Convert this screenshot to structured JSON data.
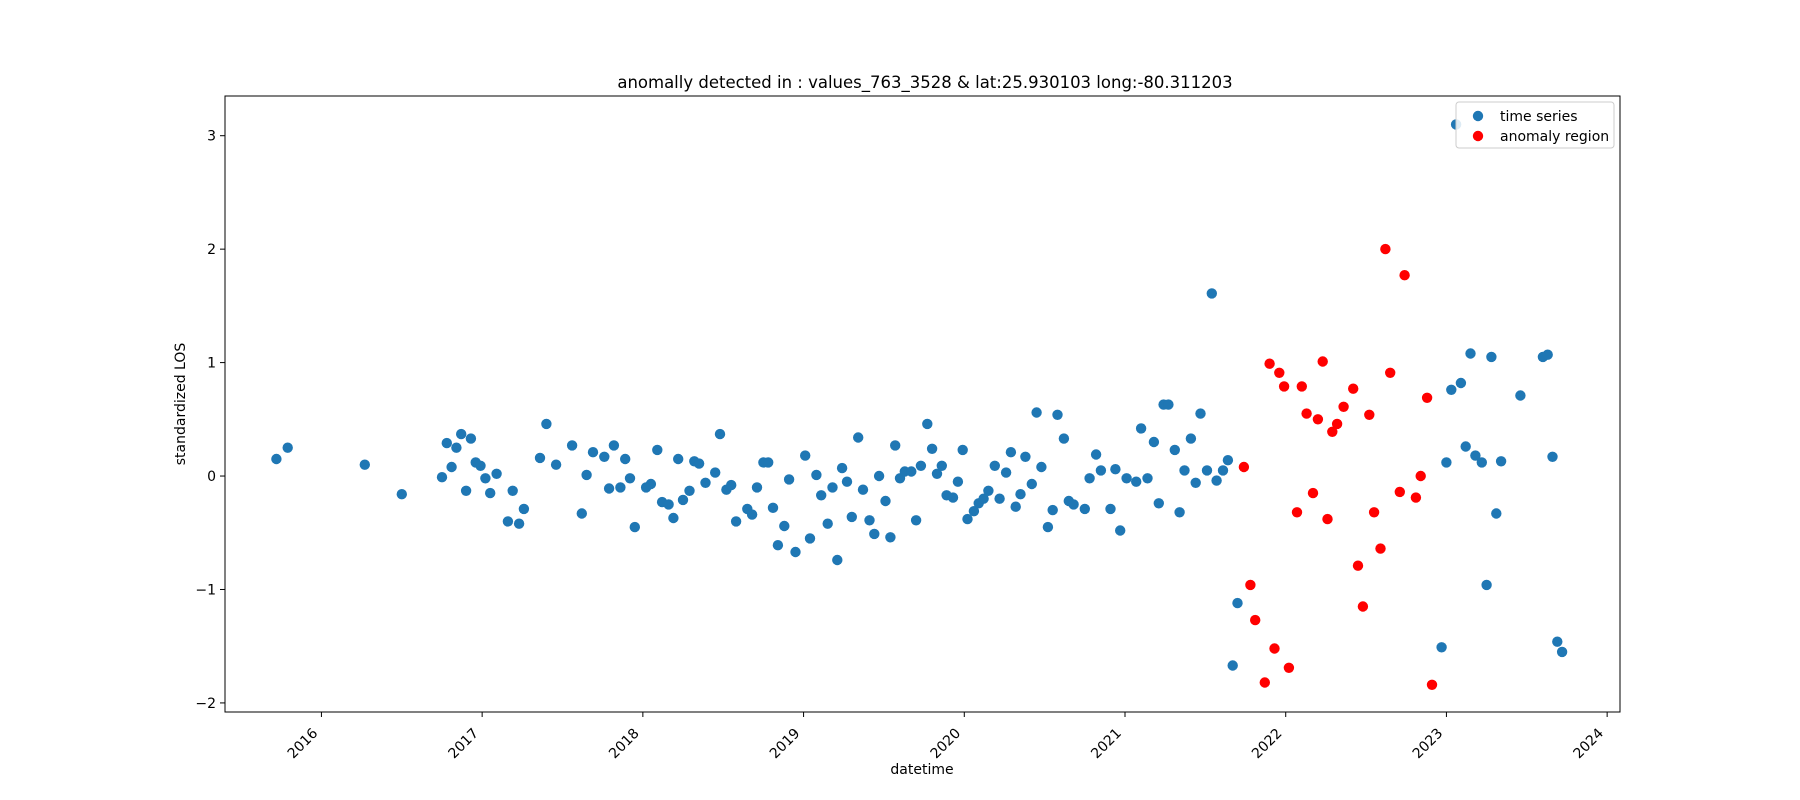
{
  "chart_data": {
    "type": "scatter",
    "title": "anomally detected in : values_763_3528 & lat:25.930103 long:-80.311203",
    "xlabel": "datetime",
    "ylabel": "standardized LOS",
    "xlim": [
      2015.4,
      2024.08
    ],
    "ylim": [
      -2.08,
      3.35
    ],
    "x_ticks": [
      {
        "value": 2016,
        "label": "2016"
      },
      {
        "value": 2017,
        "label": "2017"
      },
      {
        "value": 2018,
        "label": "2018"
      },
      {
        "value": 2019,
        "label": "2019"
      },
      {
        "value": 2020,
        "label": "2020"
      },
      {
        "value": 2021,
        "label": "2021"
      },
      {
        "value": 2022,
        "label": "2022"
      },
      {
        "value": 2023,
        "label": "2023"
      },
      {
        "value": 2024,
        "label": "2024"
      }
    ],
    "y_ticks": [
      {
        "value": -2,
        "label": "−2"
      },
      {
        "value": -1,
        "label": "−1"
      },
      {
        "value": 0,
        "label": "0"
      },
      {
        "value": 1,
        "label": "1"
      },
      {
        "value": 2,
        "label": "2"
      },
      {
        "value": 3,
        "label": "3"
      }
    ],
    "legend_position": "top-right",
    "grid": false,
    "series": [
      {
        "name": "time series",
        "color": "#1f77b4",
        "points": [
          [
            2015.72,
            0.15
          ],
          [
            2015.79,
            0.25
          ],
          [
            2016.27,
            0.1
          ],
          [
            2016.5,
            -0.16
          ],
          [
            2016.75,
            -0.01
          ],
          [
            2016.78,
            0.29
          ],
          [
            2016.81,
            0.08
          ],
          [
            2016.84,
            0.25
          ],
          [
            2016.87,
            0.37
          ],
          [
            2016.9,
            -0.13
          ],
          [
            2016.93,
            0.33
          ],
          [
            2016.96,
            0.12
          ],
          [
            2016.99,
            0.09
          ],
          [
            2017.02,
            -0.02
          ],
          [
            2017.05,
            -0.15
          ],
          [
            2017.09,
            0.02
          ],
          [
            2017.16,
            -0.4
          ],
          [
            2017.19,
            -0.13
          ],
          [
            2017.23,
            -0.42
          ],
          [
            2017.26,
            -0.29
          ],
          [
            2017.36,
            0.16
          ],
          [
            2017.4,
            0.46
          ],
          [
            2017.46,
            0.1
          ],
          [
            2017.56,
            0.27
          ],
          [
            2017.62,
            -0.33
          ],
          [
            2017.65,
            0.01
          ],
          [
            2017.69,
            0.21
          ],
          [
            2017.76,
            0.17
          ],
          [
            2017.79,
            -0.11
          ],
          [
            2017.82,
            0.27
          ],
          [
            2017.86,
            -0.1
          ],
          [
            2017.89,
            0.15
          ],
          [
            2017.92,
            -0.02
          ],
          [
            2017.95,
            -0.45
          ],
          [
            2018.02,
            -0.1
          ],
          [
            2018.05,
            -0.07
          ],
          [
            2018.09,
            0.23
          ],
          [
            2018.12,
            -0.23
          ],
          [
            2018.16,
            -0.25
          ],
          [
            2018.19,
            -0.37
          ],
          [
            2018.22,
            0.15
          ],
          [
            2018.25,
            -0.21
          ],
          [
            2018.29,
            -0.13
          ],
          [
            2018.32,
            0.13
          ],
          [
            2018.35,
            0.11
          ],
          [
            2018.39,
            -0.06
          ],
          [
            2018.45,
            0.03
          ],
          [
            2018.48,
            0.37
          ],
          [
            2018.52,
            -0.12
          ],
          [
            2018.55,
            -0.08
          ],
          [
            2018.58,
            -0.4
          ],
          [
            2018.65,
            -0.29
          ],
          [
            2018.68,
            -0.34
          ],
          [
            2018.71,
            -0.1
          ],
          [
            2018.75,
            0.12
          ],
          [
            2018.78,
            0.12
          ],
          [
            2018.81,
            -0.28
          ],
          [
            2018.84,
            -0.61
          ],
          [
            2018.88,
            -0.44
          ],
          [
            2018.91,
            -0.03
          ],
          [
            2018.95,
            -0.67
          ],
          [
            2019.01,
            0.18
          ],
          [
            2019.04,
            -0.55
          ],
          [
            2019.08,
            0.01
          ],
          [
            2019.11,
            -0.17
          ],
          [
            2019.15,
            -0.42
          ],
          [
            2019.18,
            -0.1
          ],
          [
            2019.21,
            -0.74
          ],
          [
            2019.24,
            0.07
          ],
          [
            2019.27,
            -0.05
          ],
          [
            2019.3,
            -0.36
          ],
          [
            2019.34,
            0.34
          ],
          [
            2019.37,
            -0.12
          ],
          [
            2019.41,
            -0.39
          ],
          [
            2019.44,
            -0.51
          ],
          [
            2019.47,
            0.0
          ],
          [
            2019.51,
            -0.22
          ],
          [
            2019.54,
            -0.54
          ],
          [
            2019.57,
            0.27
          ],
          [
            2019.6,
            -0.02
          ],
          [
            2019.63,
            0.04
          ],
          [
            2019.67,
            0.04
          ],
          [
            2019.7,
            -0.39
          ],
          [
            2019.73,
            0.09
          ],
          [
            2019.77,
            0.46
          ],
          [
            2019.8,
            0.24
          ],
          [
            2019.83,
            0.02
          ],
          [
            2019.86,
            0.09
          ],
          [
            2019.89,
            -0.17
          ],
          [
            2019.93,
            -0.19
          ],
          [
            2019.96,
            -0.05
          ],
          [
            2019.99,
            0.23
          ],
          [
            2020.02,
            -0.38
          ],
          [
            2020.06,
            -0.31
          ],
          [
            2020.09,
            -0.24
          ],
          [
            2020.12,
            -0.2
          ],
          [
            2020.15,
            -0.13
          ],
          [
            2020.19,
            0.09
          ],
          [
            2020.22,
            -0.2
          ],
          [
            2020.26,
            0.03
          ],
          [
            2020.29,
            0.21
          ],
          [
            2020.32,
            -0.27
          ],
          [
            2020.35,
            -0.16
          ],
          [
            2020.38,
            0.17
          ],
          [
            2020.42,
            -0.07
          ],
          [
            2020.45,
            0.56
          ],
          [
            2020.48,
            0.08
          ],
          [
            2020.52,
            -0.45
          ],
          [
            2020.55,
            -0.3
          ],
          [
            2020.58,
            0.54
          ],
          [
            2020.62,
            0.33
          ],
          [
            2020.65,
            -0.22
          ],
          [
            2020.68,
            -0.25
          ],
          [
            2020.75,
            -0.29
          ],
          [
            2020.78,
            -0.02
          ],
          [
            2020.82,
            0.19
          ],
          [
            2020.85,
            0.05
          ],
          [
            2020.91,
            -0.29
          ],
          [
            2020.94,
            0.06
          ],
          [
            2020.97,
            -0.48
          ],
          [
            2021.01,
            -0.02
          ],
          [
            2021.07,
            -0.05
          ],
          [
            2021.1,
            0.42
          ],
          [
            2021.14,
            -0.02
          ],
          [
            2021.18,
            0.3
          ],
          [
            2021.21,
            -0.24
          ],
          [
            2021.24,
            0.63
          ],
          [
            2021.27,
            0.63
          ],
          [
            2021.31,
            0.23
          ],
          [
            2021.34,
            -0.32
          ],
          [
            2021.37,
            0.05
          ],
          [
            2021.41,
            0.33
          ],
          [
            2021.44,
            -0.06
          ],
          [
            2021.47,
            0.55
          ],
          [
            2021.51,
            0.05
          ],
          [
            2021.54,
            1.61
          ],
          [
            2021.57,
            -0.04
          ],
          [
            2021.61,
            0.05
          ],
          [
            2021.64,
            0.14
          ],
          [
            2021.67,
            -1.67
          ],
          [
            2021.7,
            -1.12
          ],
          [
            2022.97,
            -1.51
          ],
          [
            2023.0,
            0.12
          ],
          [
            2023.03,
            0.76
          ],
          [
            2023.06,
            3.1
          ],
          [
            2023.09,
            0.82
          ],
          [
            2023.12,
            0.26
          ],
          [
            2023.15,
            1.08
          ],
          [
            2023.18,
            0.18
          ],
          [
            2023.22,
            0.12
          ],
          [
            2023.25,
            -0.96
          ],
          [
            2023.28,
            1.05
          ],
          [
            2023.31,
            -0.33
          ],
          [
            2023.34,
            0.13
          ],
          [
            2023.46,
            0.71
          ],
          [
            2023.6,
            1.05
          ],
          [
            2023.63,
            1.07
          ],
          [
            2023.66,
            0.17
          ],
          [
            2023.69,
            -1.46
          ],
          [
            2023.72,
            -1.55
          ]
        ]
      },
      {
        "name": "anomaly region",
        "color": "#ff0000",
        "points": [
          [
            2021.74,
            0.08
          ],
          [
            2021.78,
            -0.96
          ],
          [
            2021.81,
            -1.27
          ],
          [
            2021.87,
            -1.82
          ],
          [
            2021.9,
            0.99
          ],
          [
            2021.93,
            -1.52
          ],
          [
            2021.96,
            0.91
          ],
          [
            2021.99,
            0.79
          ],
          [
            2022.02,
            -1.69
          ],
          [
            2022.07,
            -0.32
          ],
          [
            2022.1,
            0.79
          ],
          [
            2022.13,
            0.55
          ],
          [
            2022.17,
            -0.15
          ],
          [
            2022.2,
            0.5
          ],
          [
            2022.23,
            1.01
          ],
          [
            2022.26,
            -0.38
          ],
          [
            2022.29,
            0.39
          ],
          [
            2022.32,
            0.46
          ],
          [
            2022.36,
            0.61
          ],
          [
            2022.42,
            0.77
          ],
          [
            2022.45,
            -0.79
          ],
          [
            2022.48,
            -1.15
          ],
          [
            2022.52,
            0.54
          ],
          [
            2022.55,
            -0.32
          ],
          [
            2022.59,
            -0.64
          ],
          [
            2022.62,
            2.0
          ],
          [
            2022.65,
            0.91
          ],
          [
            2022.71,
            -0.14
          ],
          [
            2022.74,
            1.77
          ],
          [
            2022.81,
            -0.19
          ],
          [
            2022.84,
            0.0
          ],
          [
            2022.88,
            0.69
          ],
          [
            2022.91,
            -1.84
          ]
        ]
      }
    ]
  }
}
